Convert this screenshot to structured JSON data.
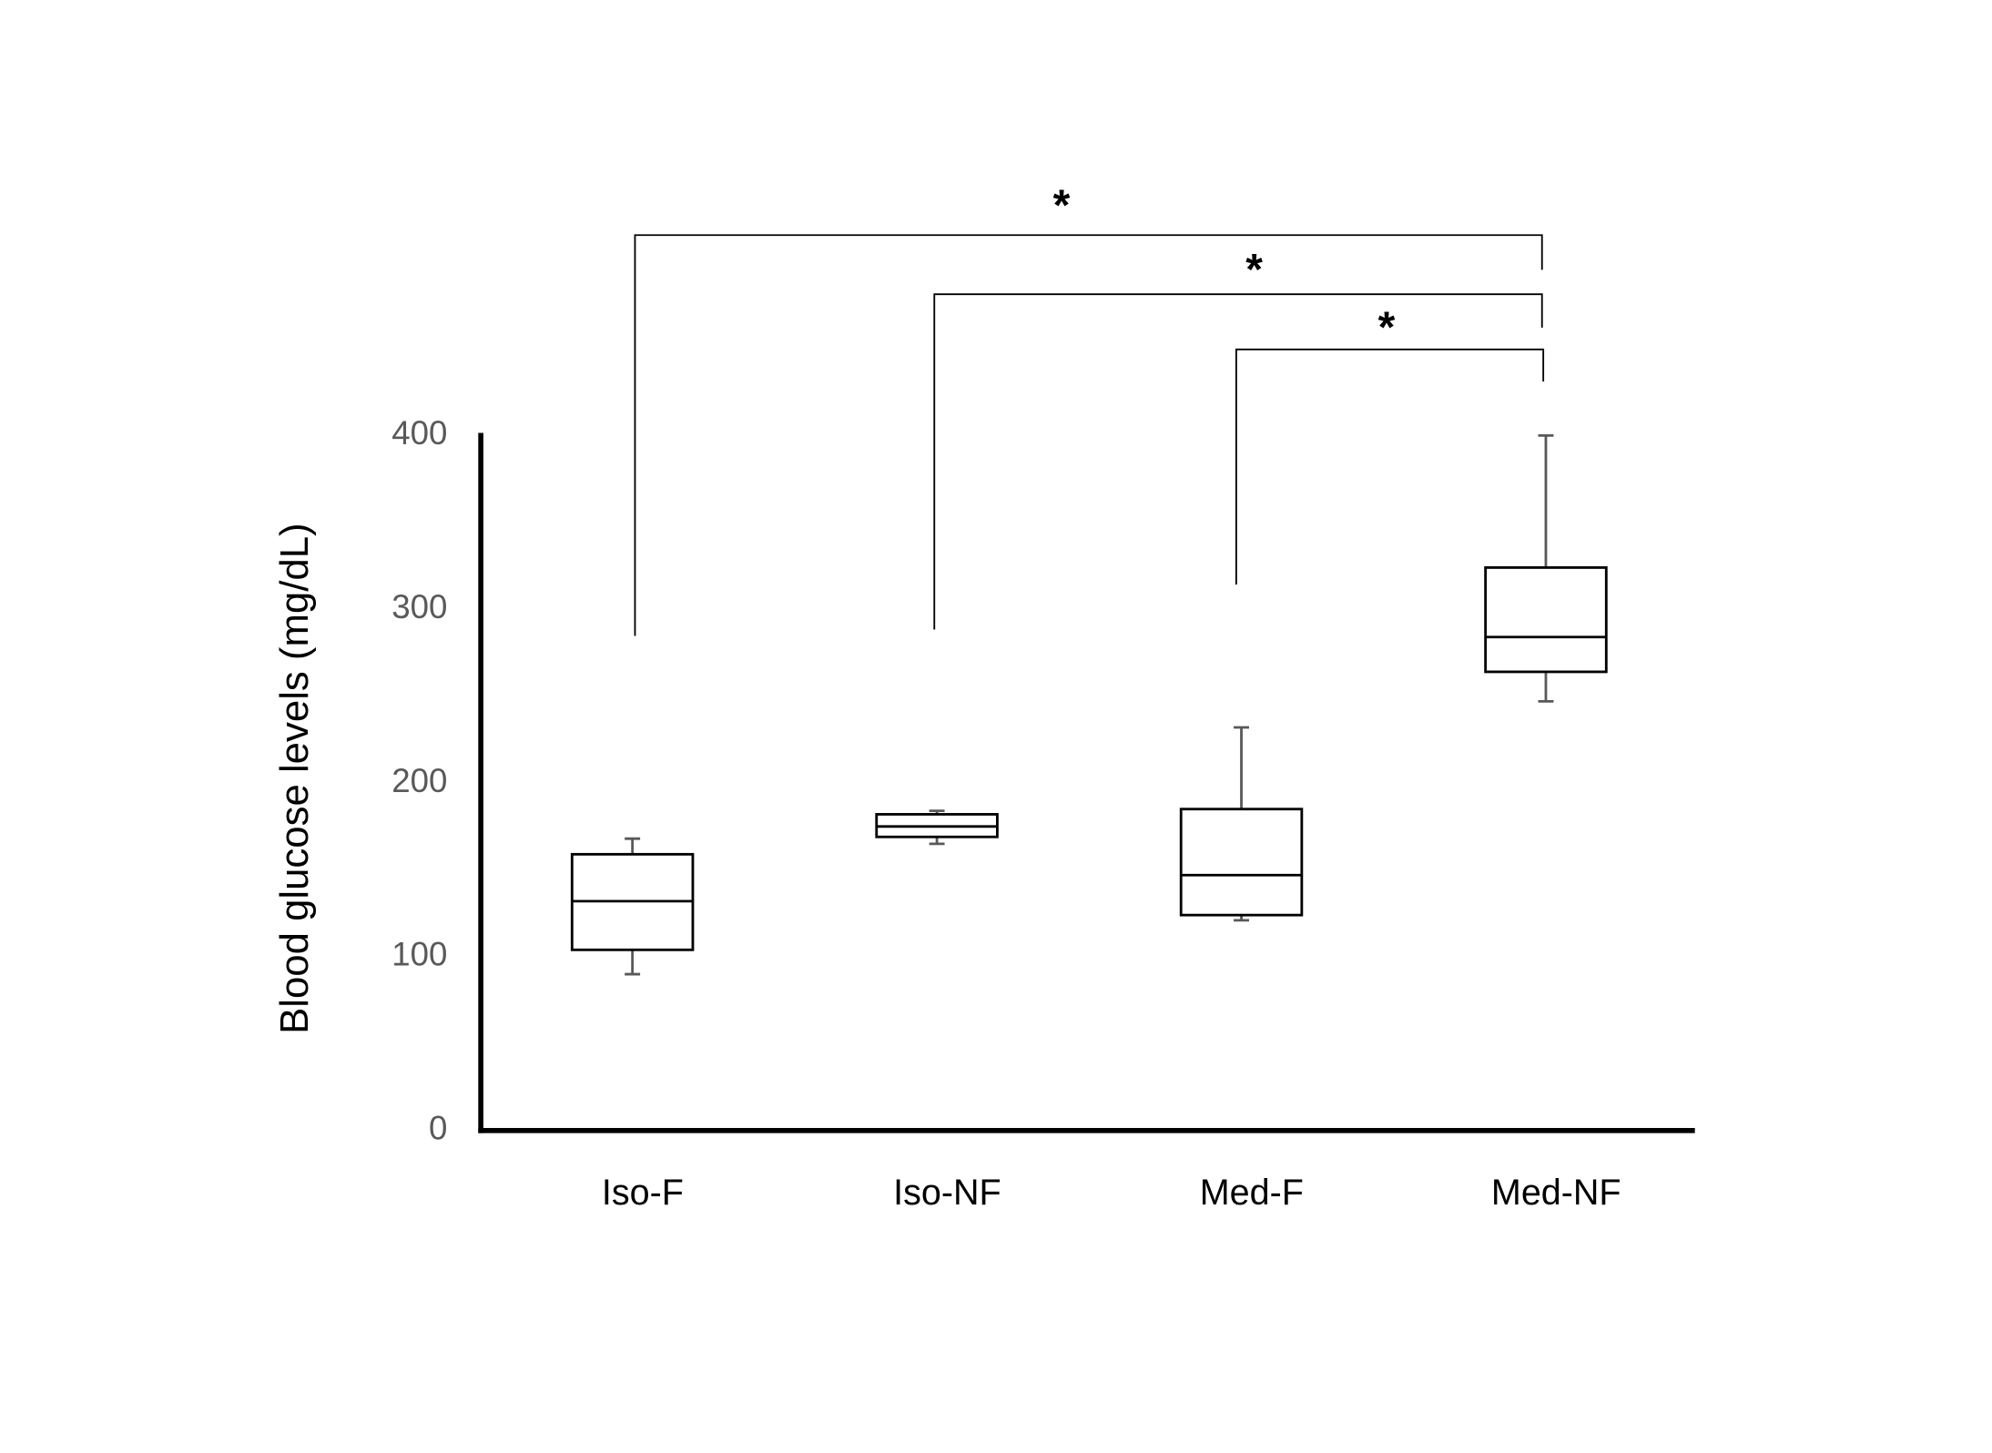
{
  "chart_data": {
    "type": "box",
    "y_label": "Blood glucose levels (mg/dL)",
    "categories": [
      "Iso-F",
      "Iso-NF",
      "Med-F",
      "Med-NF"
    ],
    "boxes": [
      {
        "min": 90,
        "q1": 104,
        "median": 132,
        "q3": 159,
        "max": 168
      },
      {
        "min": 165,
        "q1": 169,
        "median": 175,
        "q3": 182,
        "max": 184
      },
      {
        "min": 121,
        "q1": 124,
        "median": 147,
        "q3": 185,
        "max": 232
      },
      {
        "min": 247,
        "q1": 264,
        "median": 284,
        "q3": 324,
        "max": 400
      }
    ],
    "ylim": [
      0,
      400
    ],
    "yticks": [
      0,
      100,
      200,
      300,
      400
    ],
    "grid": false,
    "box_color": "#000000",
    "whisker_color": "#595959",
    "annotations": [
      "*",
      "*",
      "*"
    ]
  }
}
